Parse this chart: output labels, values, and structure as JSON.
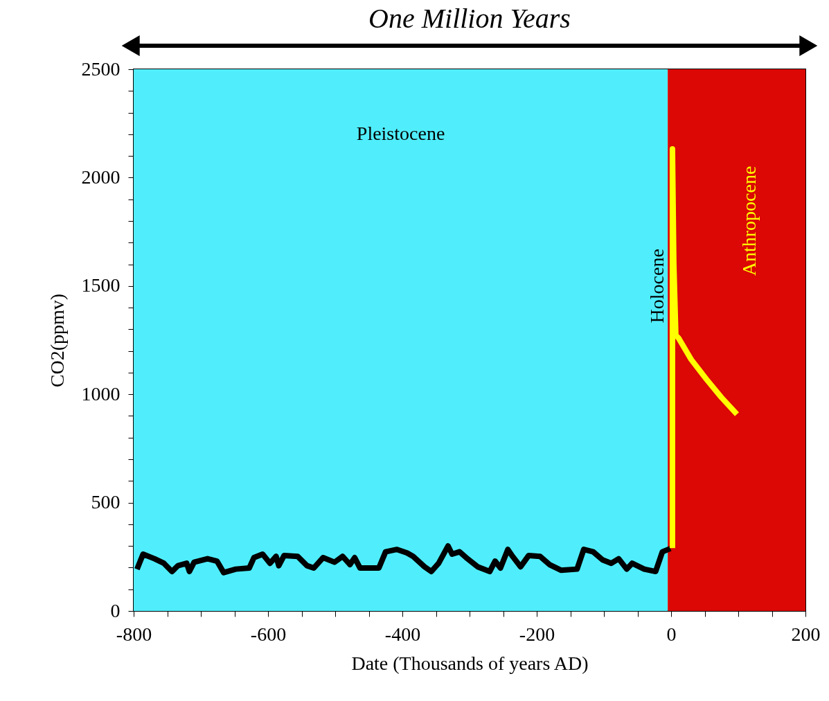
{
  "chart_data": {
    "type": "line",
    "title": "One Million Years",
    "xlabel": "Date (Thousands of years AD)",
    "ylabel": "CO2(ppmv)",
    "xlim": [
      -800,
      200
    ],
    "ylim": [
      0,
      2500
    ],
    "xticks": [
      -800,
      {
        "value": -750,
        "label": null
      },
      {
        "value": -700,
        "label": null
      },
      {
        "value": -650,
        "label": null
      },
      -600,
      {
        "value": -550,
        "label": null
      },
      {
        "value": -500,
        "label": null
      },
      {
        "value": -450,
        "label": null
      },
      -400,
      {
        "value": -350,
        "label": null
      },
      {
        "value": -300,
        "label": null
      },
      {
        "value": -250,
        "label": null
      },
      -200,
      {
        "value": -150,
        "label": null
      },
      {
        "value": -100,
        "label": null
      },
      {
        "value": -50,
        "label": null
      },
      0,
      {
        "value": 50,
        "label": null
      },
      {
        "value": 100,
        "label": null
      },
      {
        "value": 150,
        "label": null
      },
      200
    ],
    "yticks": [
      0,
      {
        "value": 100,
        "label": null
      },
      {
        "value": 200,
        "label": null
      },
      {
        "value": 300,
        "label": null
      },
      {
        "value": 400,
        "label": null
      },
      500,
      {
        "value": 600,
        "label": null
      },
      {
        "value": 700,
        "label": null
      },
      {
        "value": 800,
        "label": null
      },
      {
        "value": 900,
        "label": null
      },
      1000,
      {
        "value": 1100,
        "label": null
      },
      {
        "value": 1200,
        "label": null
      },
      {
        "value": 1300,
        "label": null
      },
      {
        "value": 1400,
        "label": null
      },
      1500,
      {
        "value": 1600,
        "label": null
      },
      {
        "value": 1700,
        "label": null
      },
      {
        "value": 1800,
        "label": null
      },
      {
        "value": 1900,
        "label": null
      },
      2000,
      {
        "value": 2100,
        "label": null
      },
      {
        "value": 2200,
        "label": null
      },
      {
        "value": 2300,
        "label": null
      },
      {
        "value": 2400,
        "label": null
      },
      2500
    ],
    "grid": false,
    "line_style": "solid",
    "marker": "none",
    "bands": [
      {
        "axis": "x",
        "from": -800,
        "to": -5,
        "label": "Pleistocene",
        "color": "#50eefc"
      },
      {
        "axis": "x",
        "from": -5,
        "to": 200,
        "label": "Anthropocene",
        "color": "#db0805"
      }
    ],
    "annotations": [
      {
        "text": "Holocene",
        "x": -5,
        "y": 1500
      }
    ],
    "series": [
      {
        "color": "#000000",
        "x": [
          -795,
          -786,
          -769,
          -755,
          -743,
          -734,
          -721,
          -717,
          -710,
          -690,
          -676,
          -666,
          -648,
          -628,
          -621,
          -608,
          -597,
          -588,
          -584,
          -576,
          -556,
          -542,
          -532,
          -518,
          -501,
          -489,
          -478,
          -471,
          -463,
          -435,
          -425,
          -408,
          -393,
          -384,
          -367,
          -357,
          -346,
          -332,
          -326,
          -315,
          -305,
          -288,
          -270,
          -262,
          -254,
          -243,
          -236,
          -224,
          -212,
          -195,
          -181,
          -164,
          -140,
          -130,
          -116,
          -102,
          -89,
          -78,
          -66,
          -58,
          -40,
          -23,
          -13,
          -1
        ],
        "values": [
          193,
          262,
          241,
          220,
          182,
          209,
          220,
          182,
          225,
          241,
          230,
          177,
          193,
          198,
          246,
          262,
          220,
          252,
          209,
          256,
          252,
          209,
          198,
          246,
          225,
          252,
          214,
          246,
          198,
          198,
          273,
          284,
          268,
          252,
          204,
          182,
          220,
          300,
          262,
          273,
          246,
          204,
          182,
          230,
          198,
          284,
          252,
          204,
          256,
          252,
          214,
          188,
          193,
          284,
          273,
          236,
          220,
          241,
          193,
          220,
          193,
          182,
          273,
          288
        ]
      },
      {
        "color": "#ffff00",
        "x": [
          2,
          2,
          4,
          7,
          11,
          30,
          53,
          75,
          98
        ],
        "values": [
          290,
          2132,
          1605,
          1272,
          1260,
          1160,
          1068,
          985,
          908
        ]
      }
    ]
  }
}
